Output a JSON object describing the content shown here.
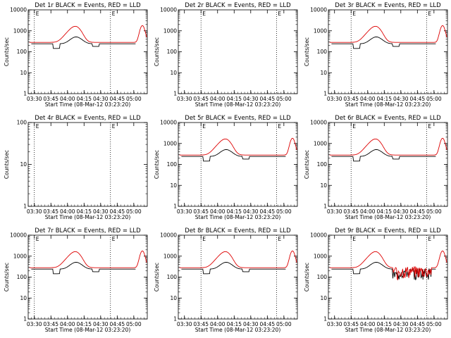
{
  "figure": {
    "xlabel": "Start Time (08-Mar-12 03:23:20)",
    "ylabel": "Counts/sec",
    "xticks": [
      "03:30",
      "03:45",
      "04:00",
      "04:15",
      "04:30",
      "04:45",
      "05:00"
    ],
    "yticks": [
      "1",
      "10",
      "100",
      "1000",
      "10000"
    ],
    "markers": [
      "E",
      "E"
    ],
    "colors": {
      "events": "#000000",
      "lld": "#dd0000",
      "axes": "#000000"
    }
  },
  "chart_data": [
    {
      "type": "line",
      "title": "Det 1r BLACK = Events, RED = LLD",
      "xlim": [
        0,
        97
      ],
      "ylim": [
        1,
        10000
      ],
      "yscale": "log",
      "ylim_top_label": "10000",
      "has_data": true,
      "dotted_lines_x": [
        5,
        67
      ],
      "shape": "std"
    },
    {
      "type": "line",
      "title": "Det 2r BLACK = Events, RED = LLD",
      "xlim": [
        0,
        97
      ],
      "ylim": [
        1,
        10000
      ],
      "yscale": "log",
      "ylim_top_label": "10000",
      "has_data": false,
      "dotted_lines_x": [
        18.5,
        80
      ],
      "shape": "none"
    },
    {
      "type": "line",
      "title": "Det 3r BLACK = Events, RED = LLD",
      "xlim": [
        0,
        97
      ],
      "ylim": [
        1,
        10000
      ],
      "yscale": "log",
      "ylim_top_label": "10000",
      "has_data": true,
      "dotted_lines_x": [
        18.5,
        80
      ],
      "shape": "std"
    },
    {
      "type": "line",
      "title": "Det 4r BLACK = Events, RED = LLD",
      "xlim": [
        0,
        97
      ],
      "ylim": [
        1,
        100
      ],
      "yscale": "log",
      "ylim_top_label": "100",
      "has_data": false,
      "dotted_lines_x": [
        5,
        67
      ],
      "shape": "none"
    },
    {
      "type": "line",
      "title": "Det 5r BLACK = Events, RED = LLD",
      "xlim": [
        0,
        97
      ],
      "ylim": [
        1,
        10000
      ],
      "yscale": "log",
      "ylim_top_label": "10000",
      "has_data": true,
      "dotted_lines_x": [
        18.5,
        80
      ],
      "shape": "std"
    },
    {
      "type": "line",
      "title": "Det 6r BLACK = Events, RED = LLD",
      "xlim": [
        0,
        97
      ],
      "ylim": [
        1,
        10000
      ],
      "yscale": "log",
      "ylim_top_label": "10000",
      "has_data": true,
      "dotted_lines_x": [
        18.5,
        80
      ],
      "shape": "std"
    },
    {
      "type": "line",
      "title": "Det 7r BLACK = Events, RED = LLD",
      "xlim": [
        0,
        97
      ],
      "ylim": [
        1,
        10000
      ],
      "yscale": "log",
      "ylim_top_label": "10000",
      "has_data": true,
      "dotted_lines_x": [
        5,
        67
      ],
      "shape": "std"
    },
    {
      "type": "line",
      "title": "Det 8r BLACK = Events, RED = LLD",
      "xlim": [
        0,
        97
      ],
      "ylim": [
        1,
        10000
      ],
      "yscale": "log",
      "ylim_top_label": "10000",
      "has_data": true,
      "dotted_lines_x": [
        18.5,
        80
      ],
      "shape": "std"
    },
    {
      "type": "line",
      "title": "Det 9r BLACK = Events, RED = LLD",
      "xlim": [
        0,
        97
      ],
      "ylim": [
        1,
        10000
      ],
      "yscale": "log",
      "ylim_top_label": "10000",
      "has_data": true,
      "dotted_lines_x": [
        18.5,
        80
      ],
      "shape": "noisy"
    }
  ]
}
